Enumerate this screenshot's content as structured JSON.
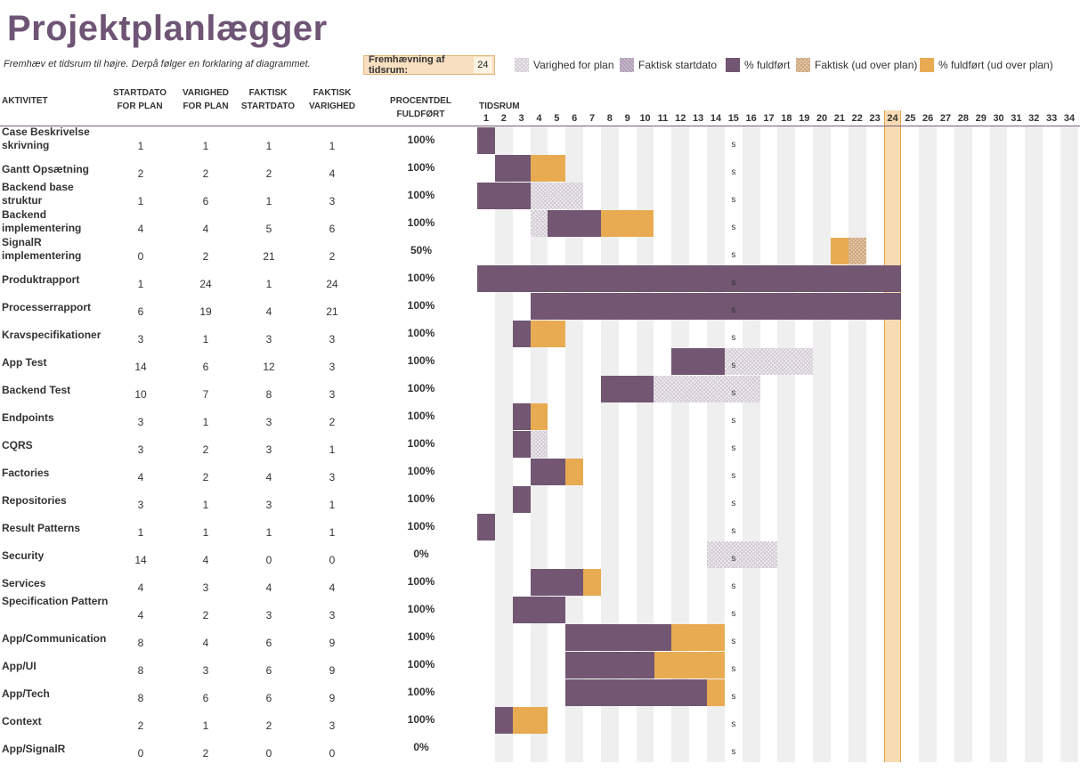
{
  "title": "Projektplanlægger",
  "subtitle": "Fremhæv et tidsrum til højre.  Derpå følger en forklaring af diagrammet.",
  "highlight": {
    "label": "Fremhævning af tidsrum:",
    "value": "24"
  },
  "legend": [
    {
      "label": "Varighed for plan",
      "style": "hatch-light"
    },
    {
      "label": "Faktisk startdato",
      "style": "hatch-purple"
    },
    {
      "label": "% fuldført",
      "style": "solid-purple"
    },
    {
      "label": "Faktisk (ud over plan)",
      "style": "hatch-orange"
    },
    {
      "label": "% fuldført (ud over plan)",
      "style": "solid-orange"
    }
  ],
  "headers": {
    "activity": "AKTIVITET",
    "plan_start": "STARTDATO FOR PLAN",
    "plan_duration": "VARIGHED FOR PLAN",
    "actual_start": "FAKTISK STARTDATO",
    "actual_duration": "FAKTISK VARIGHED",
    "percent": "PROCENTDEL FULDFØRT",
    "periods": "TIDSRUM"
  },
  "periods": [
    1,
    2,
    3,
    4,
    5,
    6,
    7,
    8,
    9,
    10,
    11,
    12,
    13,
    14,
    15,
    16,
    17,
    18,
    19,
    20,
    21,
    22,
    23,
    24,
    25,
    26,
    27,
    28,
    29,
    30,
    31,
    32,
    33,
    34
  ],
  "highlight_period": 24,
  "marker_label": "s",
  "activities": [
    {
      "name": "Case Beskrivelse skrivning",
      "plan_start": 1,
      "plan_duration": 1,
      "actual_start": 1,
      "actual_duration": 1,
      "percent": "100%"
    },
    {
      "name": "Gantt Opsætning",
      "plan_start": 2,
      "plan_duration": 2,
      "actual_start": 2,
      "actual_duration": 4,
      "percent": "100%"
    },
    {
      "name": "Backend base struktur",
      "plan_start": 1,
      "plan_duration": 6,
      "actual_start": 1,
      "actual_duration": 3,
      "percent": "100%"
    },
    {
      "name": "Backend implementering",
      "plan_start": 4,
      "plan_duration": 4,
      "actual_start": 5,
      "actual_duration": 6,
      "percent": "100%"
    },
    {
      "name": "SignalR implementering",
      "plan_start": 0,
      "plan_duration": 2,
      "actual_start": 21,
      "actual_duration": 2,
      "percent": "50%"
    },
    {
      "name": "Produktrapport",
      "plan_start": 1,
      "plan_duration": 24,
      "actual_start": 1,
      "actual_duration": 24,
      "percent": "100%"
    },
    {
      "name": "Processerrapport",
      "plan_start": 6,
      "plan_duration": 19,
      "actual_start": 4,
      "actual_duration": 21,
      "percent": "100%"
    },
    {
      "name": "Kravspecifikationer",
      "plan_start": 3,
      "plan_duration": 1,
      "actual_start": 3,
      "actual_duration": 3,
      "percent": "100%"
    },
    {
      "name": "App Test",
      "plan_start": 14,
      "plan_duration": 6,
      "actual_start": 12,
      "actual_duration": 3,
      "percent": "100%"
    },
    {
      "name": "Backend Test",
      "plan_start": 10,
      "plan_duration": 7,
      "actual_start": 8,
      "actual_duration": 3,
      "percent": "100%"
    },
    {
      "name": "Endpoints",
      "plan_start": 3,
      "plan_duration": 1,
      "actual_start": 3,
      "actual_duration": 2,
      "percent": "100%"
    },
    {
      "name": "CQRS",
      "plan_start": 3,
      "plan_duration": 2,
      "actual_start": 3,
      "actual_duration": 1,
      "percent": "100%"
    },
    {
      "name": "Factories",
      "plan_start": 4,
      "plan_duration": 2,
      "actual_start": 4,
      "actual_duration": 3,
      "percent": "100%"
    },
    {
      "name": "Repositories",
      "plan_start": 3,
      "plan_duration": 1,
      "actual_start": 3,
      "actual_duration": 1,
      "percent": "100%"
    },
    {
      "name": "Result Patterns",
      "plan_start": 1,
      "plan_duration": 1,
      "actual_start": 1,
      "actual_duration": 1,
      "percent": "100%"
    },
    {
      "name": "Security",
      "plan_start": 14,
      "plan_duration": 4,
      "actual_start": 0,
      "actual_duration": 0,
      "percent": "0%"
    },
    {
      "name": "Services",
      "plan_start": 4,
      "plan_duration": 3,
      "actual_start": 4,
      "actual_duration": 4,
      "percent": "100%"
    },
    {
      "name": "Specification Pattern",
      "plan_start": 4,
      "plan_duration": 2,
      "actual_start": 3,
      "actual_duration": 3,
      "percent": "100%"
    },
    {
      "name": "App/Communication",
      "plan_start": 8,
      "plan_duration": 4,
      "actual_start": 6,
      "actual_duration": 9,
      "percent": "100%"
    },
    {
      "name": "App/UI",
      "plan_start": 8,
      "plan_duration": 3,
      "actual_start": 6,
      "actual_duration": 9,
      "percent": "100%"
    },
    {
      "name": "App/Tech",
      "plan_start": 8,
      "plan_duration": 6,
      "actual_start": 6,
      "actual_duration": 9,
      "percent": "100%"
    },
    {
      "name": "Context",
      "plan_start": 2,
      "plan_duration": 1,
      "actual_start": 2,
      "actual_duration": 3,
      "percent": "100%"
    },
    {
      "name": "App/SignalR",
      "plan_start": 0,
      "plan_duration": 2,
      "actual_start": 0,
      "actual_duration": 0,
      "percent": "0%"
    }
  ]
}
